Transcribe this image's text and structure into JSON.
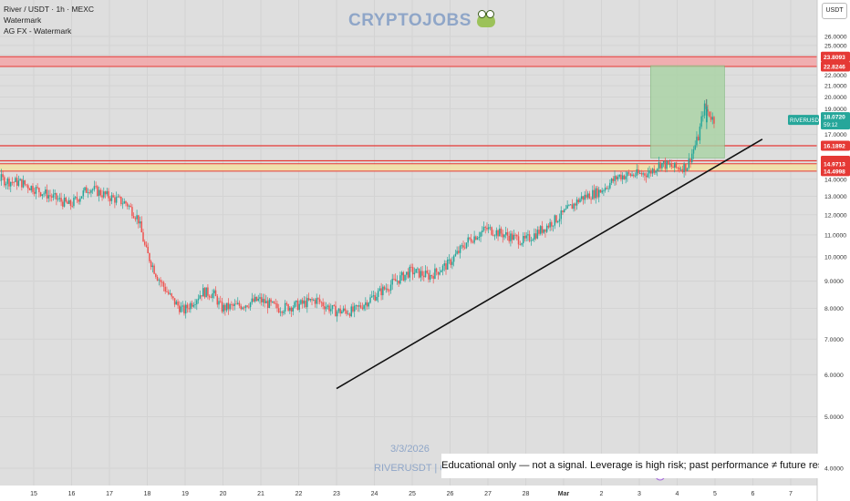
{
  "header": {
    "symbol_line": "River / USDT · 1h · MEXC",
    "indicator_1": "Watermark",
    "indicator_2": "AG FX - Watermark"
  },
  "watermark": {
    "brand": "CRYPTOJOBS",
    "date": "3/3/2026",
    "ticker": "RIVERUSDT | 60"
  },
  "disclaimer": "Educational only — not a signal. Leverage is high risk; past performance ≠ future results.",
  "currency_button": "USDT",
  "colors": {
    "background": "#dedede",
    "up_candle": "#26a69a",
    "down_candle": "#ef5350",
    "resistance_zone": "#f3a6a8",
    "support_zone": "#f3e1a2",
    "target_box": "#a9d4a4",
    "level_line": "#e53935",
    "trendline": "#111111"
  },
  "chart_data": {
    "type": "candlestick",
    "x_axis_labels": [
      "15",
      "16",
      "17",
      "18",
      "19",
      "20",
      "21",
      "22",
      "23",
      "24",
      "25",
      "26",
      "27",
      "28",
      "Mar",
      "2",
      "3",
      "4",
      "5",
      "6",
      "7"
    ],
    "y_ticks": [
      "26.0000",
      "25.0000",
      "24.0000",
      "23.0000",
      "22.0000",
      "21.0000",
      "20.0000",
      "19.0000",
      "17.0000",
      "16.0000",
      "14.0000",
      "13.0000",
      "12.0000",
      "11.0000",
      "10.0000",
      "9.0000",
      "8.0000",
      "7.0000",
      "6.0000",
      "5.0000",
      "4.0000"
    ],
    "y_scale": "log",
    "ylim": [
      3.7,
      27.6
    ],
    "price_tags": [
      {
        "id": "r1",
        "text": "23.8093",
        "value": 23.8093,
        "color": "#e53935"
      },
      {
        "id": "r2",
        "text": "22.8246",
        "value": 22.8246,
        "color": "#e53935"
      },
      {
        "id": "lv",
        "text": "16.1892",
        "value": 16.1892,
        "color": "#e53935"
      },
      {
        "id": "l2",
        "text": "15.1663",
        "value": 15.1663,
        "color": "#e53935"
      },
      {
        "id": "l3",
        "text": "14.9713",
        "value": 14.9713,
        "color": "#e53935"
      },
      {
        "id": "l4",
        "text": "14.4998",
        "value": 14.4998,
        "color": "#e53935"
      }
    ],
    "current_price": {
      "symbol": "RIVERUSDT",
      "price": "18.0720",
      "countdown": "59:12",
      "value": 18.072,
      "color": "#26a69a"
    },
    "zones": [
      {
        "name": "resistance",
        "from": 22.82,
        "to": 23.81
      },
      {
        "name": "support",
        "from": 14.5,
        "to": 14.97
      }
    ],
    "levels": [
      16.1892,
      15.1663
    ],
    "target_box": {
      "from_day": 3.3,
      "to_day": 5.25,
      "bottom": 15.35,
      "top": 22.9
    },
    "trendline": [
      {
        "day": 23.0,
        "price": 5.65
      },
      {
        "day": 6.25,
        "price": 16.65
      }
    ],
    "path": [
      [
        13.1,
        18.3
      ],
      [
        13.4,
        14.6
      ],
      [
        13.6,
        13.8
      ],
      [
        13.8,
        16.9
      ],
      [
        14.0,
        14.2
      ],
      [
        14.3,
        13.9
      ],
      [
        14.7,
        13.8
      ],
      [
        15.0,
        13.5
      ],
      [
        15.5,
        13.0
      ],
      [
        16.0,
        12.5
      ],
      [
        16.5,
        13.5
      ],
      [
        17.0,
        13.0
      ],
      [
        17.5,
        12.6
      ],
      [
        17.8,
        11.8
      ],
      [
        18.0,
        10.3
      ],
      [
        18.3,
        9.2
      ],
      [
        18.7,
        8.3
      ],
      [
        19.0,
        7.9
      ],
      [
        19.5,
        8.6
      ],
      [
        19.8,
        8.5
      ],
      [
        20.0,
        8.0
      ],
      [
        20.5,
        8.1
      ],
      [
        21.0,
        8.3
      ],
      [
        21.5,
        8.0
      ],
      [
        22.0,
        8.1
      ],
      [
        22.5,
        8.3
      ],
      [
        23.0,
        7.9
      ],
      [
        23.5,
        7.9
      ],
      [
        24.0,
        8.4
      ],
      [
        24.5,
        8.9
      ],
      [
        25.0,
        9.4
      ],
      [
        25.5,
        9.2
      ],
      [
        26.0,
        9.7
      ],
      [
        26.5,
        10.7
      ],
      [
        27.0,
        11.3
      ],
      [
        27.5,
        11.0
      ],
      [
        28.0,
        10.7
      ],
      [
        28.5,
        11.3
      ],
      [
        29.0,
        12.0
      ],
      [
        29.5,
        12.9
      ],
      [
        30.0,
        13.3
      ],
      [
        30.5,
        14.2
      ],
      [
        31.0,
        14.3
      ],
      [
        31.3,
        14.4
      ],
      [
        31.6,
        15.0
      ],
      [
        32.0,
        14.7
      ],
      [
        32.3,
        14.8
      ],
      [
        32.6,
        16.8
      ],
      [
        32.75,
        19.2
      ],
      [
        33.0,
        18.1
      ]
    ],
    "spikes": [
      {
        "day": 13.9,
        "high": 17.0,
        "low": 13.9
      },
      {
        "day": 32.78,
        "high": 19.8,
        "low": 17.4
      }
    ]
  }
}
